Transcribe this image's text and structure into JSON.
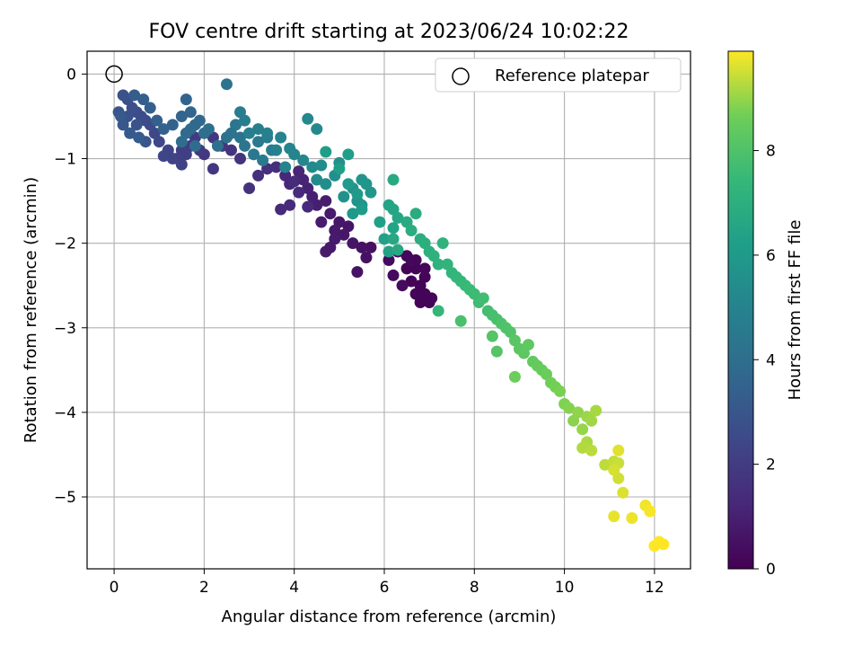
{
  "chart_data": {
    "type": "scatter",
    "title": "FOV centre drift starting at 2023/06/24 10:02:22",
    "xlabel": "Angular distance from reference (arcmin)",
    "ylabel": "Rotation from reference (arcmin)",
    "xlim": [
      -0.6,
      12.8
    ],
    "ylim": [
      -5.85,
      0.27
    ],
    "xticks": [
      0,
      2,
      4,
      6,
      8,
      10,
      12
    ],
    "yticks": [
      0,
      -1,
      -2,
      -3,
      -4,
      -5
    ],
    "grid": true,
    "legend": {
      "position": "upper right",
      "entries": [
        "Reference platepar"
      ]
    },
    "reference_point": {
      "x": 0,
      "y": 0
    },
    "colorbar": {
      "label": "Hours from first FF file",
      "range": [
        0,
        9.9
      ],
      "ticks": [
        0,
        2,
        4,
        6,
        8
      ],
      "colormap": "viridis"
    },
    "series": [
      {
        "points": [
          [
            6.7,
            -2.3,
            0.1
          ],
          [
            6.9,
            -2.4,
            0.1
          ],
          [
            6.8,
            -2.5,
            0.1
          ],
          [
            6.9,
            -2.6,
            0.1
          ],
          [
            7.0,
            -2.7,
            0.1
          ],
          [
            6.7,
            -2.6,
            0.1
          ],
          [
            6.6,
            -2.45,
            0.1
          ],
          [
            6.5,
            -2.3,
            0.1
          ],
          [
            6.8,
            -2.7,
            0.1
          ],
          [
            7.05,
            -2.65,
            0.1
          ],
          [
            6.9,
            -2.3,
            0.2
          ],
          [
            6.6,
            -2.2,
            0.3
          ],
          [
            6.3,
            -2.1,
            0.3
          ],
          [
            6.1,
            -2.2,
            0.3
          ],
          [
            6.2,
            -2.38,
            0.3
          ],
          [
            6.4,
            -2.5,
            0.3
          ],
          [
            6.7,
            -2.2,
            0.2
          ],
          [
            6.5,
            -2.15,
            0.25
          ],
          [
            5.7,
            -2.05,
            0.5
          ],
          [
            5.6,
            -2.17,
            0.5
          ],
          [
            5.5,
            -2.05,
            0.55
          ],
          [
            5.4,
            -2.34,
            0.6
          ],
          [
            5.3,
            -2.0,
            0.6
          ],
          [
            5.2,
            -1.8,
            0.65
          ],
          [
            5.1,
            -1.9,
            0.7
          ],
          [
            5.0,
            -1.75,
            0.7
          ],
          [
            4.9,
            -1.85,
            0.75
          ],
          [
            4.8,
            -1.65,
            0.8
          ],
          [
            4.9,
            -1.95,
            0.8
          ],
          [
            4.8,
            -2.05,
            0.75
          ],
          [
            4.7,
            -2.1,
            0.8
          ],
          [
            4.6,
            -1.75,
            0.85
          ],
          [
            4.7,
            -1.5,
            0.9
          ],
          [
            4.5,
            -1.55,
            0.95
          ],
          [
            4.4,
            -1.45,
            1.0
          ],
          [
            4.3,
            -1.35,
            1.05
          ],
          [
            4.2,
            -1.25,
            1.1
          ],
          [
            4.1,
            -1.15,
            1.15
          ],
          [
            3.9,
            -1.3,
            1.2
          ],
          [
            3.8,
            -1.2,
            1.25
          ],
          [
            3.7,
            -1.6,
            1.3
          ],
          [
            3.9,
            -1.55,
            1.3
          ],
          [
            4.1,
            -1.4,
            1.35
          ],
          [
            4.3,
            -1.57,
            1.35
          ],
          [
            4.0,
            -1.27,
            1.4
          ],
          [
            3.6,
            -1.1,
            1.45
          ],
          [
            3.4,
            -1.12,
            1.5
          ],
          [
            3.2,
            -1.2,
            1.55
          ],
          [
            3.0,
            -1.35,
            1.6
          ],
          [
            2.8,
            -1.0,
            1.65
          ],
          [
            2.6,
            -0.9,
            1.7
          ],
          [
            2.4,
            -0.85,
            1.75
          ],
          [
            2.2,
            -0.75,
            1.8
          ],
          [
            2.2,
            -1.12,
            1.8
          ],
          [
            2.0,
            -0.95,
            1.85
          ],
          [
            1.9,
            -0.9,
            1.9
          ],
          [
            1.8,
            -0.75,
            1.95
          ],
          [
            1.7,
            -0.85,
            2.0
          ],
          [
            1.6,
            -0.95,
            2.05
          ],
          [
            1.5,
            -0.9,
            2.1
          ],
          [
            1.4,
            -1.0,
            2.15
          ],
          [
            1.5,
            -1.07,
            2.2
          ],
          [
            1.3,
            -1.0,
            2.25
          ],
          [
            1.2,
            -0.9,
            2.3
          ],
          [
            1.1,
            -0.97,
            2.35
          ],
          [
            1.0,
            -0.8,
            2.4
          ],
          [
            0.9,
            -0.7,
            2.45
          ],
          [
            0.8,
            -0.6,
            2.5
          ],
          [
            0.7,
            -0.55,
            2.55
          ],
          [
            0.6,
            -0.5,
            2.6
          ],
          [
            0.5,
            -0.45,
            2.65
          ],
          [
            0.4,
            -0.4,
            2.7
          ],
          [
            0.3,
            -0.3,
            2.75
          ],
          [
            0.2,
            -0.25,
            2.8
          ],
          [
            0.3,
            -0.5,
            2.85
          ],
          [
            0.5,
            -0.6,
            2.9
          ],
          [
            0.7,
            -0.8,
            2.95
          ],
          [
            0.1,
            -0.45,
            3.0
          ],
          [
            0.2,
            -0.6,
            3.05
          ],
          [
            0.15,
            -0.5,
            3.1
          ],
          [
            0.35,
            -0.7,
            3.15
          ],
          [
            0.55,
            -0.75,
            3.2
          ],
          [
            0.45,
            -0.25,
            3.25
          ],
          [
            0.65,
            -0.3,
            3.3
          ],
          [
            0.8,
            -0.4,
            3.35
          ],
          [
            0.95,
            -0.55,
            3.4
          ],
          [
            1.1,
            -0.65,
            3.45
          ],
          [
            1.3,
            -0.6,
            3.5
          ],
          [
            1.5,
            -0.5,
            3.55
          ],
          [
            1.6,
            -0.3,
            3.6
          ],
          [
            1.7,
            -0.45,
            3.65
          ],
          [
            1.8,
            -0.6,
            3.7
          ],
          [
            1.9,
            -0.55,
            3.75
          ],
          [
            1.7,
            -0.65,
            3.8
          ],
          [
            1.6,
            -0.7,
            3.85
          ],
          [
            1.8,
            -0.85,
            3.9
          ],
          [
            1.5,
            -0.8,
            3.95
          ],
          [
            2.0,
            -0.7,
            4.0
          ],
          [
            2.1,
            -0.65,
            4.05
          ],
          [
            2.3,
            -0.85,
            4.1
          ],
          [
            2.5,
            -0.75,
            4.15
          ],
          [
            2.6,
            -0.7,
            4.2
          ],
          [
            2.8,
            -0.75,
            4.25
          ],
          [
            2.5,
            -0.12,
            4.3
          ],
          [
            2.7,
            -0.6,
            4.35
          ],
          [
            2.9,
            -0.85,
            4.4
          ],
          [
            3.1,
            -0.95,
            4.45
          ],
          [
            3.2,
            -0.8,
            4.5
          ],
          [
            3.3,
            -1.02,
            4.55
          ],
          [
            3.4,
            -0.75,
            4.6
          ],
          [
            3.5,
            -0.9,
            4.65
          ],
          [
            2.8,
            -0.45,
            4.7
          ],
          [
            2.9,
            -0.55,
            4.7
          ],
          [
            3.0,
            -0.7,
            4.75
          ],
          [
            3.2,
            -0.65,
            4.8
          ],
          [
            3.4,
            -0.7,
            4.85
          ],
          [
            3.6,
            -0.9,
            4.9
          ],
          [
            3.7,
            -0.75,
            4.95
          ],
          [
            3.8,
            -1.1,
            5.0
          ],
          [
            3.9,
            -0.88,
            5.05
          ],
          [
            4.0,
            -0.95,
            5.1
          ],
          [
            4.2,
            -1.02,
            5.15
          ],
          [
            4.3,
            -0.53,
            5.2
          ],
          [
            4.5,
            -0.65,
            5.25
          ],
          [
            4.4,
            -1.1,
            5.3
          ],
          [
            4.5,
            -1.25,
            5.35
          ],
          [
            4.6,
            -1.08,
            5.4
          ],
          [
            4.7,
            -1.3,
            5.45
          ],
          [
            4.9,
            -1.2,
            5.5
          ],
          [
            5.0,
            -1.05,
            5.55
          ],
          [
            5.1,
            -1.45,
            5.6
          ],
          [
            5.3,
            -1.35,
            5.65
          ],
          [
            5.4,
            -1.5,
            5.7
          ],
          [
            5.5,
            -1.55,
            5.75
          ],
          [
            5.5,
            -1.25,
            5.8
          ],
          [
            5.6,
            -1.3,
            5.85
          ],
          [
            5.7,
            -1.4,
            5.9
          ],
          [
            5.3,
            -1.65,
            5.95
          ],
          [
            5.2,
            -1.3,
            6.0
          ],
          [
            5.4,
            -1.42,
            6.05
          ],
          [
            5.5,
            -1.6,
            6.1
          ],
          [
            4.7,
            -0.92,
            6.15
          ],
          [
            5.2,
            -0.95,
            6.2
          ],
          [
            5.0,
            -1.12,
            6.25
          ],
          [
            5.9,
            -1.75,
            6.3
          ],
          [
            6.0,
            -1.95,
            6.35
          ],
          [
            6.1,
            -2.1,
            6.4
          ],
          [
            6.2,
            -1.82,
            6.45
          ],
          [
            6.1,
            -1.55,
            6.5
          ],
          [
            6.2,
            -1.6,
            6.55
          ],
          [
            6.3,
            -1.7,
            6.6
          ],
          [
            6.2,
            -1.95,
            6.65
          ],
          [
            6.3,
            -2.08,
            6.7
          ],
          [
            6.2,
            -1.25,
            6.75
          ],
          [
            6.5,
            -1.75,
            6.8
          ],
          [
            6.7,
            -1.65,
            6.85
          ],
          [
            6.6,
            -1.85,
            6.9
          ],
          [
            6.8,
            -1.95,
            6.95
          ],
          [
            6.9,
            -2.0,
            7.0
          ],
          [
            7.0,
            -2.1,
            7.05
          ],
          [
            7.1,
            -2.15,
            7.1
          ],
          [
            7.2,
            -2.25,
            7.15
          ],
          [
            7.3,
            -2.0,
            7.2
          ],
          [
            7.4,
            -2.25,
            7.25
          ],
          [
            7.5,
            -2.35,
            7.3
          ],
          [
            7.6,
            -2.4,
            7.35
          ],
          [
            7.2,
            -2.8,
            7.4
          ],
          [
            7.7,
            -2.45,
            7.45
          ],
          [
            7.8,
            -2.5,
            7.5
          ],
          [
            7.9,
            -2.55,
            7.55
          ],
          [
            8.0,
            -2.6,
            7.6
          ],
          [
            8.1,
            -2.7,
            7.65
          ],
          [
            8.2,
            -2.65,
            7.7
          ],
          [
            8.3,
            -2.8,
            7.75
          ],
          [
            8.4,
            -2.85,
            7.8
          ],
          [
            8.5,
            -2.9,
            7.85
          ],
          [
            7.7,
            -2.92,
            7.9
          ],
          [
            8.6,
            -2.95,
            7.95
          ],
          [
            8.7,
            -3.0,
            8.0
          ],
          [
            8.8,
            -3.05,
            8.05
          ],
          [
            8.4,
            -3.1,
            8.1
          ],
          [
            8.5,
            -3.28,
            8.15
          ],
          [
            8.9,
            -3.15,
            8.2
          ],
          [
            9.0,
            -3.25,
            8.25
          ],
          [
            9.1,
            -3.3,
            8.3
          ],
          [
            9.2,
            -3.2,
            8.35
          ],
          [
            9.3,
            -3.4,
            8.4
          ],
          [
            9.4,
            -3.45,
            8.45
          ],
          [
            9.5,
            -3.5,
            8.5
          ],
          [
            9.6,
            -3.55,
            8.55
          ],
          [
            8.9,
            -3.58,
            8.6
          ],
          [
            9.7,
            -3.65,
            8.65
          ],
          [
            9.8,
            -3.7,
            8.7
          ],
          [
            9.9,
            -3.75,
            8.75
          ],
          [
            10.0,
            -3.9,
            8.8
          ],
          [
            10.1,
            -3.95,
            8.85
          ],
          [
            10.2,
            -4.1,
            8.9
          ],
          [
            10.3,
            -4.0,
            8.95
          ],
          [
            10.4,
            -4.2,
            9.0
          ],
          [
            10.5,
            -4.05,
            9.05
          ],
          [
            10.6,
            -4.1,
            9.1
          ],
          [
            10.7,
            -3.98,
            9.15
          ],
          [
            10.5,
            -4.35,
            9.2
          ],
          [
            10.4,
            -4.42,
            9.25
          ],
          [
            10.6,
            -4.45,
            9.3
          ],
          [
            10.9,
            -4.62,
            9.35
          ],
          [
            11.1,
            -4.58,
            9.4
          ],
          [
            11.2,
            -4.6,
            9.45
          ],
          [
            11.2,
            -4.78,
            9.5
          ],
          [
            11.1,
            -4.68,
            9.55
          ],
          [
            11.3,
            -4.95,
            9.6
          ],
          [
            11.2,
            -4.45,
            9.65
          ],
          [
            11.1,
            -5.23,
            9.7
          ],
          [
            11.5,
            -5.25,
            9.75
          ],
          [
            11.8,
            -5.1,
            9.8
          ],
          [
            11.9,
            -5.17,
            9.85
          ],
          [
            12.0,
            -5.58,
            9.9
          ],
          [
            12.1,
            -5.53,
            9.9
          ],
          [
            12.2,
            -5.56,
            9.9
          ]
        ]
      }
    ]
  }
}
